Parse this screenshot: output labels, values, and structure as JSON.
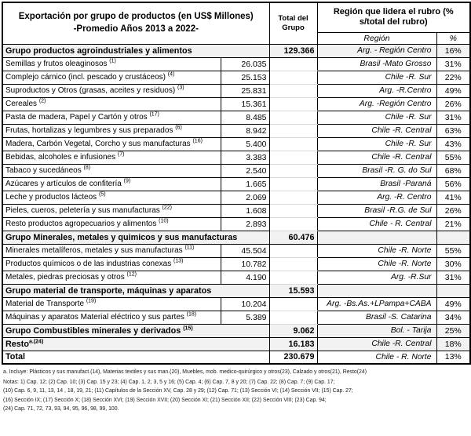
{
  "header": {
    "title_line1": "Exportación por grupo de productos (en US$ Millones)",
    "title_line2": "-Promedio  Años 2013 a 2022-",
    "total_col_line1": "Total del",
    "total_col_line2": "Grupo",
    "region_header": "Región que lidera el rubro (% s/total del rubro)",
    "region_subheader": "Región",
    "pct_subheader": "%"
  },
  "table": {
    "rows": [
      {
        "type": "group",
        "name": "Grupo productos agroindustriales y alimentos",
        "sup": "",
        "value": "129.366",
        "region": "Arg. - Región Centro",
        "pct": "16%"
      },
      {
        "type": "detail",
        "name": "Semillas y frutos oleaginosos",
        "sup": "(1)",
        "value": "26.035",
        "region": "Brasil -Mato Grosso",
        "pct": "31%"
      },
      {
        "type": "detail",
        "name": "Complejo cárnico (incl. pescado y crustáceos)",
        "sup": "(4)",
        "value": "25.153",
        "region": "Chile -R. Sur",
        "pct": "22%"
      },
      {
        "type": "detail",
        "name": "Suproductos y Otros (grasas, aceites y residuos)",
        "sup": "(3)",
        "value": "25.831",
        "region": "Arg. -R.Centro",
        "pct": "49%"
      },
      {
        "type": "detail",
        "name": "Cereales",
        "sup": "(2)",
        "value": "15.361",
        "region": "Arg. -Región Centro",
        "pct": "26%"
      },
      {
        "type": "detail",
        "name": "Pasta de madera, Papel y Cartón y otros",
        "sup": "(17)",
        "value": "8.485",
        "region": "Chile -R. Sur",
        "pct": "31%"
      },
      {
        "type": "detail",
        "name": "Frutas, hortalizas y legumbres y sus preparados",
        "sup": "(6)",
        "value": "8.942",
        "region": "Chile -R. Central",
        "pct": "63%"
      },
      {
        "type": "detail",
        "name": "Madera, Carbón Vegetal, Corcho y sus manufacturas",
        "sup": "(16)",
        "value": "5.400",
        "region": "Chile -R. Sur",
        "pct": "43%"
      },
      {
        "type": "detail",
        "name": "Bebidas, alcoholes e infusiones",
        "sup": "(7)",
        "value": "3.383",
        "region": "Chile -R. Central",
        "pct": "55%"
      },
      {
        "type": "detail",
        "name": "Tabaco y sucedáneos",
        "sup": "(8)",
        "value": "2.540",
        "region": "Brasil -R. G. do Sul",
        "pct": "68%"
      },
      {
        "type": "detail",
        "name": "Azúcares y artículos de confitería",
        "sup": "(9)",
        "value": "1.665",
        "region": "Brasil -Paraná",
        "pct": "56%"
      },
      {
        "type": "detail",
        "name": "Leche y productos lácteos",
        "sup": "(5)",
        "value": "2.069",
        "region": "Arg. -R. Centro",
        "pct": "41%"
      },
      {
        "type": "detail",
        "name": "Pieles, cueros, peletería y sus manufacturas",
        "sup": "(22)",
        "value": "1.608",
        "region": "Brasil -R.G. de Sul",
        "pct": "26%"
      },
      {
        "type": "detail",
        "name": "Resto productos agropecuarios y alimentos",
        "sup": "(10)",
        "value": "2.893",
        "region": "Chile - R. Central",
        "pct": "21%"
      },
      {
        "type": "group",
        "name": "Grupo Minerales, metales y quimicos y sus manufacturas",
        "sup": "",
        "value": "60.476",
        "region": "",
        "pct": ""
      },
      {
        "type": "detail",
        "name": "Minerales metalíferos, metales y sus manufacturas",
        "sup": "(11)",
        "value": "45.504",
        "region": "Chile -R. Norte",
        "pct": "55%"
      },
      {
        "type": "detail",
        "name": "Productos químicos o de las industrias conexas",
        "sup": "(13)",
        "value": "10.782",
        "region": "Chile -R. Norte",
        "pct": "30%"
      },
      {
        "type": "detail",
        "name": "Metales, piedras preciosas y otros",
        "sup": "(12)",
        "value": "4.190",
        "region": "Arg. -R.Sur",
        "pct": "31%"
      },
      {
        "type": "group",
        "name": "Grupo material de transporte, máquinas y aparatos",
        "sup": "",
        "value": "15.593",
        "region": "",
        "pct": ""
      },
      {
        "type": "detail",
        "name": "Material de Transporte",
        "sup": "(19)",
        "value": "10.204",
        "region": "Arg. -Bs.As.+LPampa+CABA",
        "pct": "49%"
      },
      {
        "type": "detail",
        "name": "Máquinas y aparatos Material eléctrico y sus partes",
        "sup": "(18)",
        "value": "5.389",
        "region": "Brasil -S. Catarina",
        "pct": "34%"
      },
      {
        "type": "group",
        "name": "Grupo Combustibles minerales y derivados",
        "sup": "(15)",
        "value": "9.062",
        "region": "Bol. - Tarija",
        "pct": "25%"
      },
      {
        "type": "group",
        "name": "Resto",
        "sup": "a.(24)",
        "value": "16.183",
        "region": "Chile -R. Central",
        "pct": "18%"
      },
      {
        "type": "total",
        "name": "Total",
        "sup": "",
        "value": "230.679",
        "region": "Chile - R. Norte",
        "pct": "13%"
      }
    ]
  },
  "footnotes": {
    "lines": [
      "a. Incluye: Plásticos y sus manufact.(14), Materias textiles y sus man.(20), Muebles, mob. medico-quirúrgico y otros(23), Calzado y otros(21), Resto(24)",
      "Notas: 1) Cap. 12; (2) Cap. 10; (3) Cap. 15 y 23;  (4) Cap. 1, 2, 3, 5 y 16; (5) Cap. 4; (6) Cap. 7, 8 y 20; (7) Cap. 22; (8) Cap. 7; (9) Cap. 17;",
      "(10) Cap. 6, 9, 11, 13, 14 , 18, 19, 21; (11) Capítulos de la Sección XV, Cap. 28 y 29; (12) Cap. 71; (13) Sección VI; (14) Sección VII; (15) Cap. 27;",
      "(16) Sección IX; (17) Sección X; (18) Sección XVI; (19) Sección XVII; (20) Sección XI; (21) Sección XII; (22) Sección VIII; (23) Cap. 94;",
      "(24) Cap. 71, 72, 73, 93, 94, 95, 96, 98, 99, 100."
    ]
  },
  "colors": {
    "group_row_bg": "#f2f2f2",
    "border": "#000000",
    "faint_grid": "#d9d9d9",
    "text": "#000000"
  }
}
